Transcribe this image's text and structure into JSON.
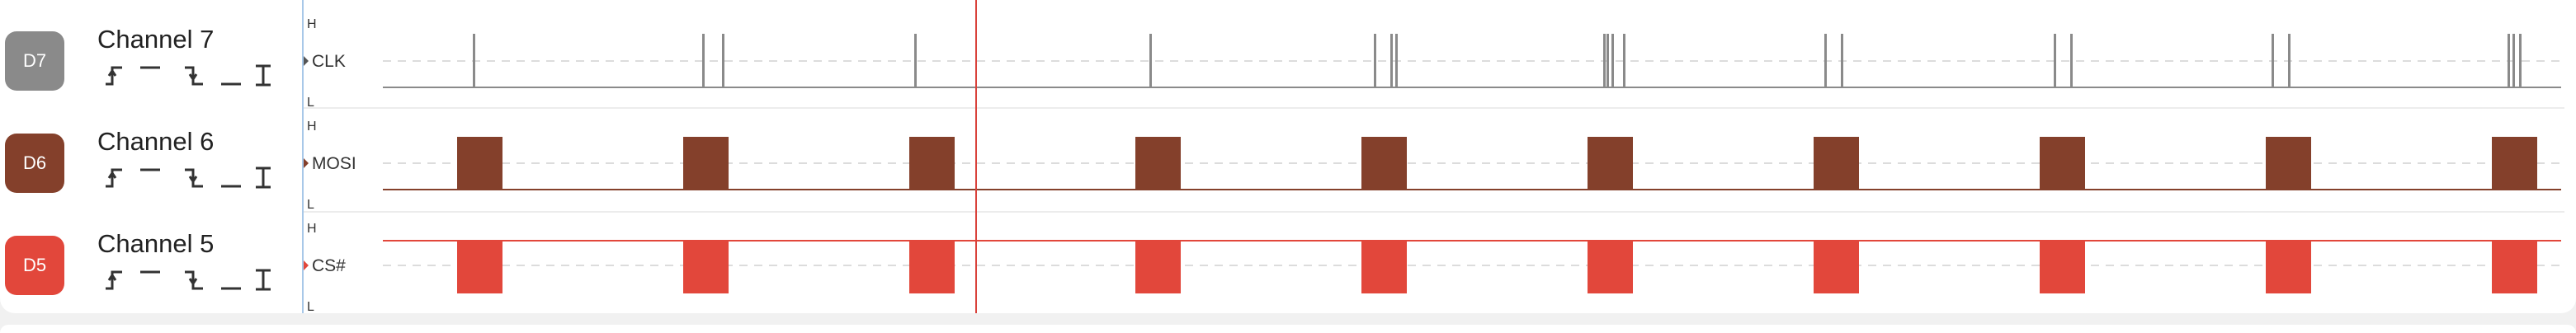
{
  "cursor_color": "#d9413a",
  "channels": [
    {
      "badge": "D7",
      "name": "Channel 7",
      "label": "CLK",
      "color": "#8a8a8a",
      "level_high": "H",
      "level_low": "L"
    },
    {
      "badge": "D6",
      "name": "Channel 6",
      "label": "MOSI",
      "color": "#84402b",
      "level_high": "H",
      "level_low": "L"
    },
    {
      "badge": "D5",
      "name": "Channel 5",
      "label": "CS#",
      "color": "#e2473b",
      "level_high": "H",
      "level_low": "L"
    }
  ],
  "trigger_icons": [
    "rising-edge-icon",
    "high-level-icon",
    "falling-edge-icon",
    "low-level-icon",
    "any-edge-icon"
  ]
}
